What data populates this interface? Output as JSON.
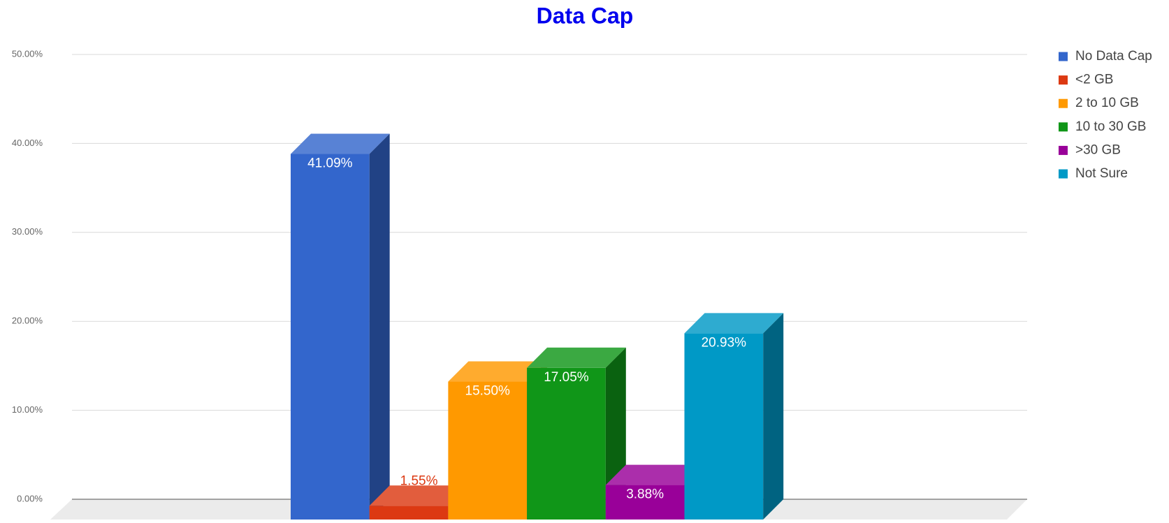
{
  "chart_data": {
    "type": "bar3d",
    "title": "Data Cap",
    "categories": [
      null
    ],
    "series": [
      {
        "name": "No Data Cap",
        "color": "#3366cc",
        "values": [
          41.09
        ],
        "value_labels": [
          "41.09%"
        ]
      },
      {
        "name": "<2 GB",
        "color": "#dc3912",
        "values": [
          1.55
        ],
        "value_labels": [
          "1.55%"
        ]
      },
      {
        "name": "2 to 10 GB",
        "color": "#ff9900",
        "values": [
          15.5
        ],
        "value_labels": [
          "15.50%"
        ]
      },
      {
        "name": "10 to 30 GB",
        "color": "#109618",
        "values": [
          17.05
        ],
        "value_labels": [
          "17.05%"
        ]
      },
      {
        "name": ">30 GB",
        "color": "#990099",
        "values": [
          3.88
        ],
        "value_labels": [
          "3.88%"
        ]
      },
      {
        "name": "Not Sure",
        "color": "#0099c6",
        "values": [
          20.93
        ],
        "value_labels": [
          "20.93%"
        ]
      }
    ],
    "ylim": [
      0,
      50
    ],
    "yticks": [
      {
        "value": 0,
        "label": "0.00%"
      },
      {
        "value": 10,
        "label": "10.00%"
      },
      {
        "value": 20,
        "label": "20.00%"
      },
      {
        "value": 30,
        "label": "30.00%"
      },
      {
        "value": 40,
        "label": "40.00%"
      },
      {
        "value": 50,
        "label": "50.00%"
      }
    ],
    "grid": true,
    "legend": "right"
  }
}
